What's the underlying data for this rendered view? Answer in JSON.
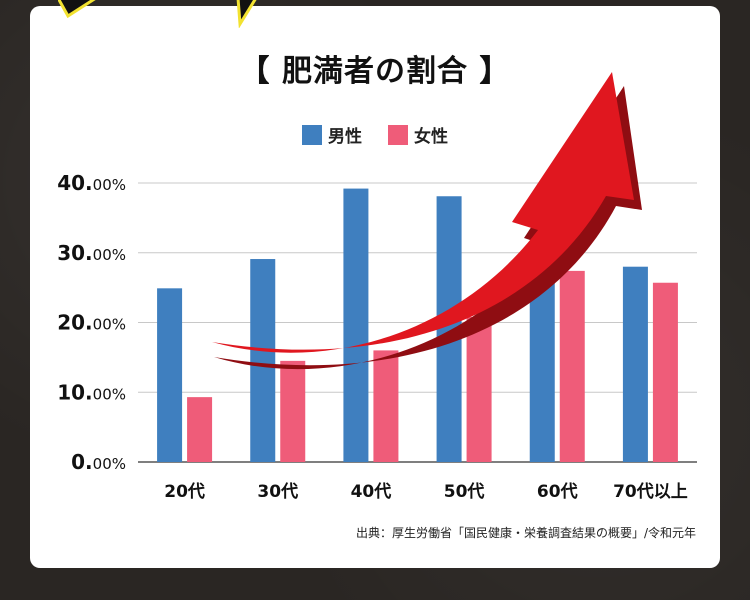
{
  "colors": {
    "male": "#3f7fbf",
    "female": "#ef5c79",
    "arrow": "#e0171f",
    "arrow_shadow": "#8f0d12",
    "grid": "#c8c8c8"
  },
  "chart_data": {
    "type": "bar",
    "title": "【 肥満者の割合 】",
    "categories": [
      "20代",
      "30代",
      "40代",
      "50代",
      "60代",
      "70代以上"
    ],
    "series": [
      {
        "name": "男性",
        "values": [
          24.9,
          29.1,
          39.2,
          38.1,
          29.0,
          28.0
        ]
      },
      {
        "name": "女性",
        "values": [
          9.3,
          14.5,
          16.0,
          20.8,
          27.4,
          25.7
        ]
      }
    ],
    "yticks": [
      {
        "value": 0,
        "big": "0.",
        "small": "00%"
      },
      {
        "value": 10,
        "big": "10.",
        "small": "00%"
      },
      {
        "value": 20,
        "big": "20.",
        "small": "00%"
      },
      {
        "value": 30,
        "big": "30.",
        "small": "00%"
      },
      {
        "value": 40,
        "big": "40.",
        "small": "00%"
      }
    ],
    "ylim": [
      0,
      40
    ],
    "grid": true,
    "legend_position": "top-center"
  },
  "source": "出典：厚生労働省「国民健康・栄養調査結果の概要」/令和元年"
}
